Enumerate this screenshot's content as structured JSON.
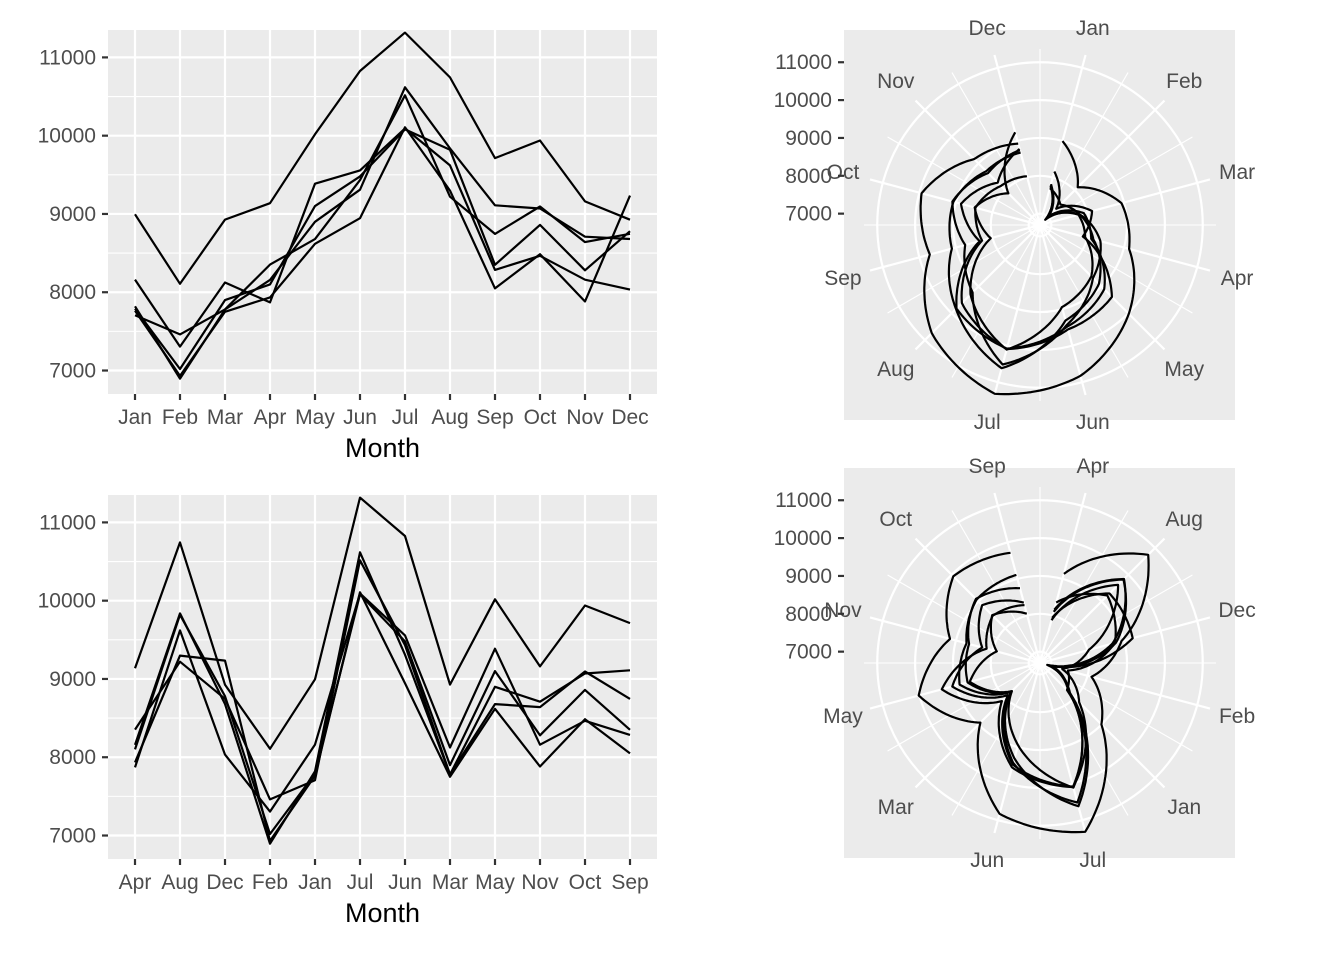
{
  "chart_data": [
    {
      "type": "line",
      "position": "top-left",
      "categories": [
        "Jan",
        "Feb",
        "Mar",
        "Apr",
        "May",
        "Jun",
        "Jul",
        "Aug",
        "Sep",
        "Oct",
        "Nov",
        "Dec"
      ],
      "xlabel": "Month",
      "ylabel": "",
      "ylim": [
        6700,
        11350
      ],
      "yticks": [
        7000,
        8000,
        9000,
        10000,
        11000
      ],
      "series": [
        {
          "values": [
            8996,
            8108,
            8928,
            9137,
            10017,
            10826,
            11317,
            10744,
            9713,
            9938,
            9161,
            8927
          ]
        },
        {
          "values": [
            8162,
            7306,
            8124,
            7870,
            9387,
            9556,
            10093,
            9620,
            8285,
            8466,
            8160,
            8034
          ]
        },
        {
          "values": [
            7820,
            6896,
            7780,
            8158,
            8900,
            9310,
            10618,
            9838,
            9110,
            9070,
            8710,
            8680
          ]
        },
        {
          "values": [
            7763,
            6931,
            7750,
            7934,
            8619,
            8946,
            10107,
            9298,
            8049,
            8486,
            7882,
            9235
          ]
        },
        {
          "values": [
            7707,
            7462,
            7781,
            8353,
            8679,
            9433,
            10516,
            9220,
            8745,
            9095,
            8640,
            8747
          ]
        },
        {
          "values": [
            7790,
            7020,
            7900,
            8100,
            9100,
            9480,
            10080,
            9820,
            8350,
            8860,
            8280,
            8780
          ]
        }
      ]
    },
    {
      "type": "polar-line",
      "position": "top-right",
      "angular_labels": [
        "Jan",
        "Feb",
        "Mar",
        "Apr",
        "May",
        "Jun",
        "Jul",
        "Aug",
        "Sep",
        "Oct",
        "Nov",
        "Dec"
      ],
      "radial_ticks": [
        7000,
        8000,
        9000,
        10000,
        11000
      ],
      "rlim": [
        6700,
        11350
      ]
    },
    {
      "type": "line",
      "position": "bottom-left",
      "categories": [
        "Apr",
        "Aug",
        "Dec",
        "Feb",
        "Jan",
        "Jul",
        "Jun",
        "Mar",
        "May",
        "Nov",
        "Oct",
        "Sep"
      ],
      "xlabel": "Month",
      "ylabel": "",
      "ylim": [
        6700,
        11350
      ],
      "yticks": [
        7000,
        8000,
        9000,
        10000,
        11000
      ]
    },
    {
      "type": "polar-line",
      "position": "bottom-right",
      "angular_labels": [
        "Apr",
        "Aug",
        "Dec",
        "Feb",
        "Jan",
        "Jul",
        "Jun",
        "Mar",
        "May",
        "Nov",
        "Oct",
        "Sep"
      ],
      "radial_ticks": [
        7000,
        8000,
        9000,
        10000,
        11000
      ],
      "rlim": [
        6700,
        11350
      ]
    }
  ]
}
